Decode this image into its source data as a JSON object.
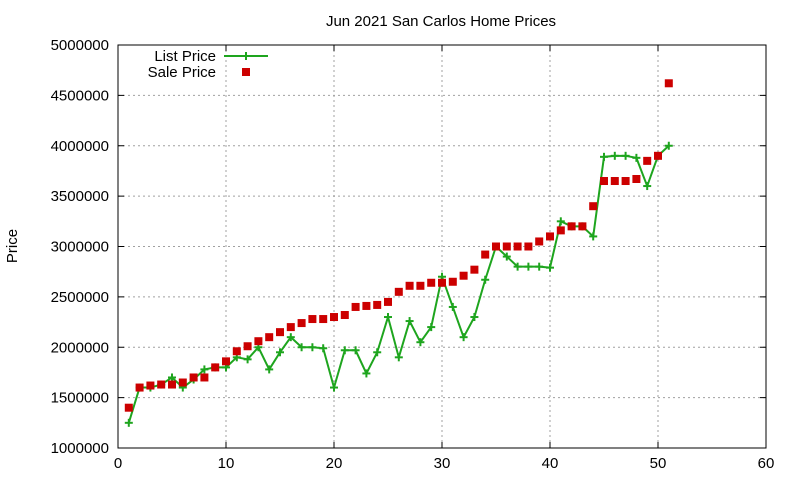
{
  "chart_data": {
    "type": "line",
    "title": "Jun 2021 San Carlos Home Prices",
    "xlabel": "",
    "ylabel": "Price",
    "xlim": [
      0,
      60
    ],
    "ylim": [
      1000000,
      5000000
    ],
    "xticks": [
      0,
      10,
      20,
      30,
      40,
      50,
      60
    ],
    "yticks": [
      1000000,
      1500000,
      2000000,
      2500000,
      3000000,
      3500000,
      4000000,
      4500000,
      5000000
    ],
    "grid": true,
    "legend_position": "top-left",
    "series": [
      {
        "name": "List Price",
        "style": "line-with-plus-markers",
        "color": "#1ea51e",
        "x": [
          1,
          2,
          3,
          4,
          5,
          6,
          7,
          8,
          9,
          10,
          11,
          12,
          13,
          14,
          15,
          16,
          17,
          18,
          19,
          20,
          21,
          22,
          23,
          24,
          25,
          26,
          27,
          28,
          29,
          30,
          31,
          32,
          33,
          34,
          35,
          36,
          37,
          38,
          39,
          40,
          41,
          42,
          43,
          44,
          45,
          46,
          47,
          48,
          49,
          50,
          51
        ],
        "values": [
          1250000,
          1600000,
          1600000,
          1630000,
          1700000,
          1600000,
          1680000,
          1780000,
          1800000,
          1800000,
          1900000,
          1880000,
          2000000,
          1780000,
          1950000,
          2100000,
          2000000,
          2000000,
          1990000,
          1600000,
          1970000,
          1970000,
          1740000,
          1950000,
          2300000,
          1900000,
          2260000,
          2050000,
          2200000,
          2700000,
          2400000,
          2100000,
          2300000,
          2670000,
          3000000,
          2900000,
          2800000,
          2800000,
          2800000,
          2790000,
          3250000,
          3200000,
          3200000,
          3100000,
          3890000,
          3900000,
          3900000,
          3880000,
          3600000,
          3900000,
          4000000
        ]
      },
      {
        "name": "Sale Price",
        "style": "square-markers",
        "color": "#cc0000",
        "x": [
          1,
          2,
          3,
          4,
          5,
          6,
          7,
          8,
          9,
          10,
          11,
          12,
          13,
          14,
          15,
          16,
          17,
          18,
          19,
          20,
          21,
          22,
          23,
          24,
          25,
          26,
          27,
          28,
          29,
          30,
          31,
          32,
          33,
          34,
          35,
          36,
          37,
          38,
          39,
          40,
          41,
          42,
          43,
          44,
          45,
          46,
          47,
          48,
          49,
          50,
          51
        ],
        "values": [
          1400000,
          1600000,
          1620000,
          1630000,
          1630000,
          1650000,
          1700000,
          1700000,
          1800000,
          1860000,
          1960000,
          2010000,
          2060000,
          2100000,
          2150000,
          2200000,
          2240000,
          2280000,
          2280000,
          2300000,
          2320000,
          2400000,
          2410000,
          2420000,
          2450000,
          2550000,
          2610000,
          2610000,
          2640000,
          2640000,
          2650000,
          2710000,
          2770000,
          2920000,
          3000000,
          3000000,
          3000000,
          3000000,
          3050000,
          3100000,
          3160000,
          3200000,
          3200000,
          3400000,
          3650000,
          3650000,
          3650000,
          3670000,
          3850000,
          3900000,
          4620000
        ]
      }
    ]
  }
}
